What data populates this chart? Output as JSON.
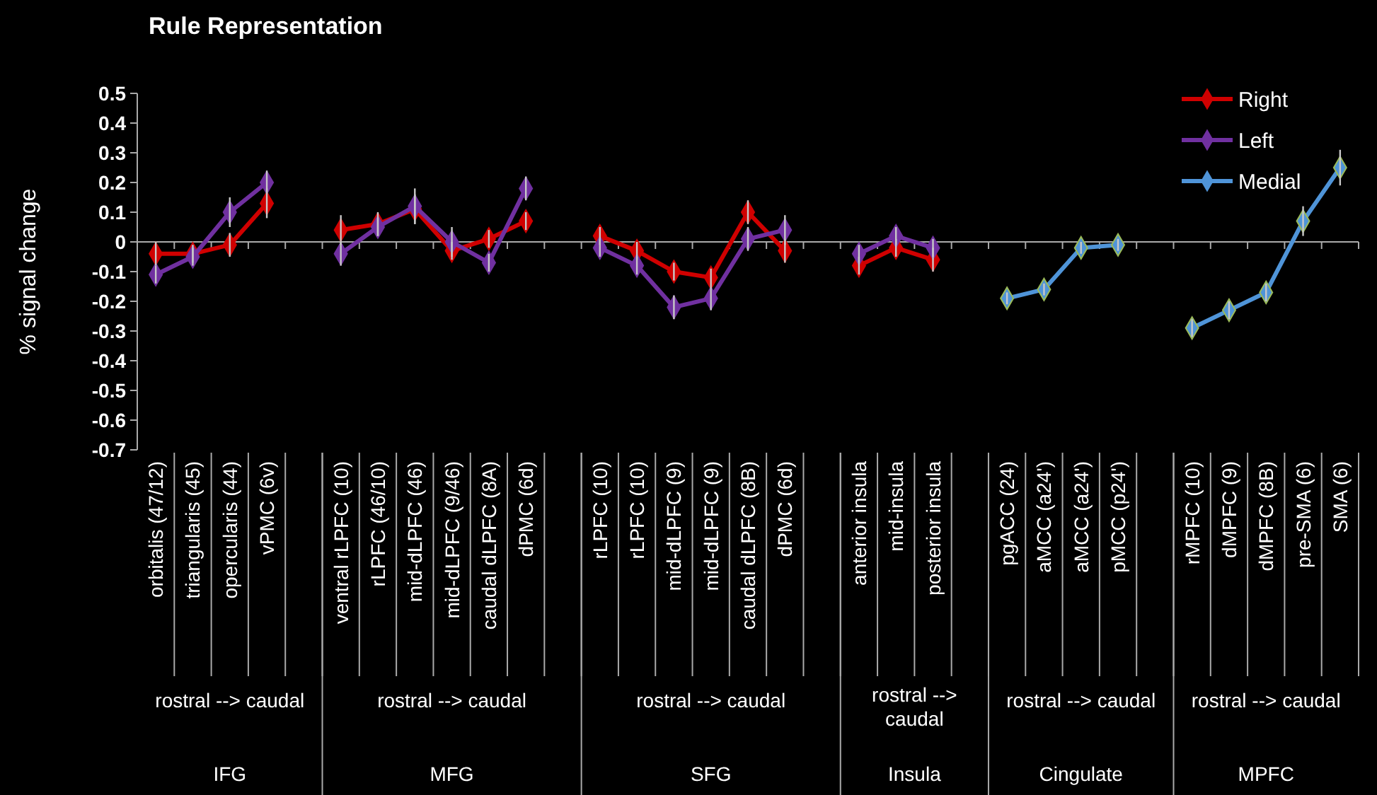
{
  "chart_data": {
    "type": "line",
    "title": "Rule Representation",
    "ylabel": "% signal change",
    "categories": [
      "orbitalis (47/12)",
      "triangularis (45)",
      "opercularis (44)",
      "vPMC (6v)",
      null,
      "ventral rLPFC (10)",
      "rLPFC (46/10)",
      "mid-dLPFC (46)",
      "mid-dLPFC (9/46)",
      "caudal dLPFC (8A)",
      "dPMC (6d)",
      null,
      "rLPFC (10)",
      "rLPFC (10)",
      "mid-dLPFC (9)",
      "mid-dLPFC (9)",
      "caudal dLPFC (8B)",
      "dPMC (6d)",
      null,
      "anterior insula",
      "mid-insula",
      "posterior insula",
      null,
      "pgACC (24)",
      "aMCC (a24')",
      "aMCC (a24')",
      "pMCC (p24')",
      null,
      "rMPFC (10)",
      "dMPFC (9)",
      "dMPFC (8B)",
      "pre-SMA (6)",
      "SMA (6)"
    ],
    "series": [
      {
        "name": "Right",
        "color": "#d00000",
        "values": [
          -0.04,
          -0.04,
          -0.01,
          0.13,
          null,
          0.04,
          0.06,
          0.11,
          -0.03,
          0.01,
          0.07,
          null,
          0.02,
          -0.03,
          -0.1,
          -0.12,
          0.1,
          -0.03,
          null,
          -0.08,
          -0.02,
          -0.06,
          null,
          null,
          null,
          null,
          null,
          null,
          null,
          null,
          null,
          null,
          null
        ],
        "errors": [
          0.04,
          0.03,
          0.04,
          0.05,
          null,
          0.05,
          0.04,
          0.05,
          0.03,
          0.03,
          0.03,
          null,
          0.03,
          0.03,
          0.03,
          0.03,
          0.04,
          0.04,
          null,
          0.03,
          0.03,
          0.04,
          null,
          null,
          null,
          null,
          null,
          null,
          null,
          null,
          null,
          null,
          null
        ]
      },
      {
        "name": "Left",
        "color": "#7030a0",
        "values": [
          -0.11,
          -0.05,
          0.1,
          0.2,
          null,
          -0.04,
          0.05,
          0.12,
          0.0,
          -0.07,
          0.18,
          null,
          -0.02,
          -0.08,
          -0.22,
          -0.19,
          0.01,
          0.04,
          null,
          -0.04,
          0.02,
          -0.02,
          null,
          null,
          null,
          null,
          null,
          null,
          null,
          null,
          null,
          null,
          null
        ],
        "errors": [
          0.03,
          0.03,
          0.05,
          0.04,
          null,
          0.04,
          0.03,
          0.06,
          0.05,
          0.03,
          0.04,
          null,
          0.03,
          0.03,
          0.04,
          0.04,
          0.04,
          0.05,
          null,
          0.03,
          0.03,
          0.03,
          null,
          null,
          null,
          null,
          null,
          null,
          null,
          null,
          null,
          null,
          null
        ]
      },
      {
        "name": "Medial",
        "color": "#4f94d8",
        "values": [
          null,
          null,
          null,
          null,
          null,
          null,
          null,
          null,
          null,
          null,
          null,
          null,
          null,
          null,
          null,
          null,
          null,
          null,
          null,
          null,
          null,
          null,
          null,
          -0.19,
          -0.16,
          -0.02,
          -0.01,
          null,
          -0.29,
          -0.23,
          -0.17,
          0.07,
          0.25
        ],
        "errors": [
          null,
          null,
          null,
          null,
          null,
          null,
          null,
          null,
          null,
          null,
          null,
          null,
          null,
          null,
          null,
          null,
          null,
          null,
          null,
          null,
          null,
          null,
          null,
          0.02,
          0.02,
          0.02,
          0.02,
          null,
          0.03,
          0.03,
          0.03,
          0.05,
          0.06
        ]
      }
    ],
    "ylim": [
      -0.7,
      0.5
    ],
    "yticks": [
      -0.7,
      -0.6,
      -0.5,
      -0.4,
      -0.3,
      -0.2,
      -0.1,
      0,
      0.1,
      0.2,
      0.3,
      0.4,
      0.5
    ],
    "ref_lines": [
      {
        "axis": "y",
        "value": 0,
        "color": "#aaaaaa"
      }
    ],
    "marker": "diamond",
    "legend": "top right",
    "grid": false,
    "annotations": [
      "rostral --> caudal",
      "rostral --> caudal",
      "rostral --> caudal",
      "rostral --> caudal",
      "rostral --> caudal",
      "rostral --> caudal",
      "IFG",
      "MFG",
      "SFG",
      "Insula",
      "Cingulate",
      "MPFC"
    ]
  }
}
